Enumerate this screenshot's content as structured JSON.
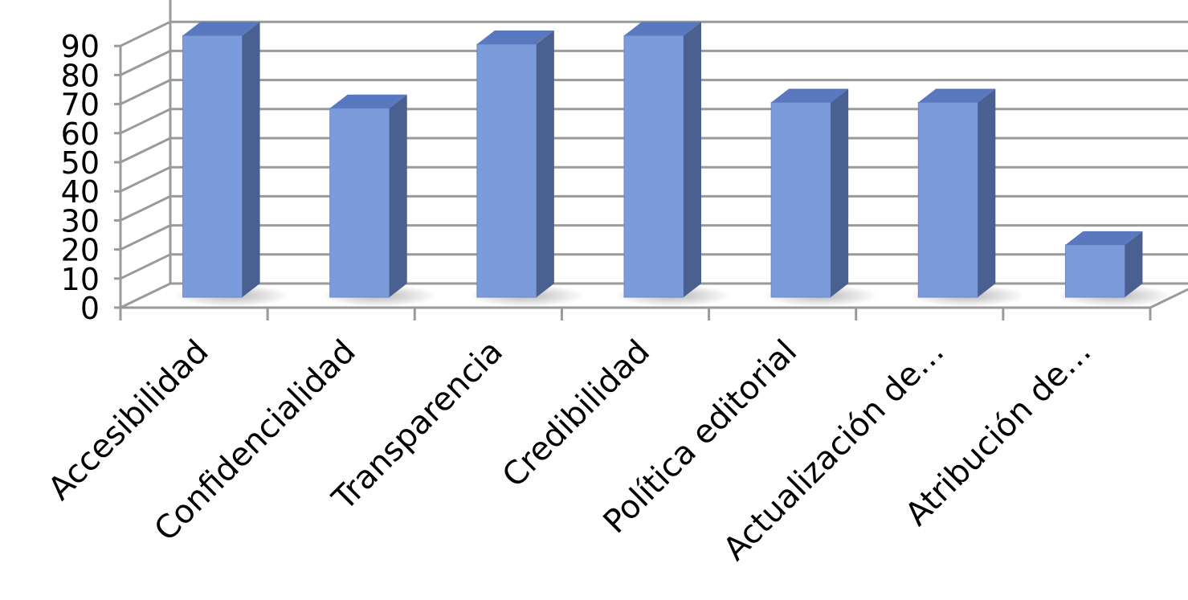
{
  "chart_data": {
    "type": "bar",
    "style": "3d-column",
    "categories": [
      "Accesibilidad",
      "Confidencialidad",
      "Transparencia",
      "Credibilidad",
      "Política editorial",
      "Actualización de…",
      "Atribución de…"
    ],
    "values": [
      90,
      65,
      87,
      90,
      67,
      67,
      18
    ],
    "ylim": [
      0,
      90
    ],
    "yticks": [
      0,
      10,
      20,
      30,
      40,
      50,
      60,
      70,
      80,
      90
    ],
    "grid": true,
    "legend": "none",
    "bar_color": "#7b9bdb",
    "bar_side_color": "#4a6091",
    "bar_top_color": "#5a78bf",
    "grid_color": "#9a9a9a"
  }
}
